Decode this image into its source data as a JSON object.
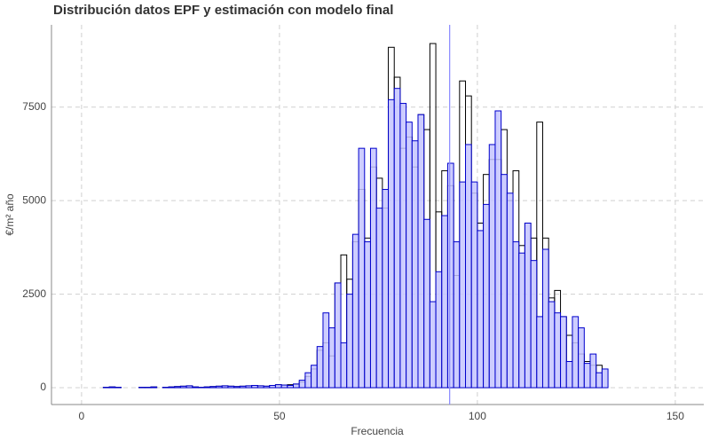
{
  "chart_data": {
    "type": "histogram",
    "title": "Distribución datos EPF y estimación con modelo final",
    "x_label": "Frecuencia",
    "y_label": "€/m² año",
    "bins": [
      1,
      2.5,
      4,
      5.5,
      7,
      8.5,
      10,
      11.5,
      13,
      14.5,
      16,
      17.5,
      19,
      20.5,
      22,
      23.5,
      25,
      26.5,
      28,
      29.5,
      31,
      32.5,
      34,
      35.5,
      37,
      38.5,
      40,
      41.5,
      43,
      44.5,
      46,
      47.5,
      49,
      50.5,
      52,
      53.5,
      55,
      56.5,
      58,
      59.5,
      61,
      62.5,
      64,
      65.5,
      67,
      68.5,
      70,
      71.5,
      73,
      74.5,
      76,
      77.5,
      79,
      80.5,
      82,
      83.5,
      85,
      86.5,
      88,
      89.5,
      91,
      92.5,
      94,
      95.5,
      97,
      98.5,
      100,
      101.5,
      103,
      104.5,
      106,
      107.5,
      109,
      110.5,
      112,
      113.5,
      115,
      116.5,
      118,
      119.5,
      121,
      122.5,
      124,
      125.5,
      127,
      128.5,
      130,
      131.5,
      133,
      134.5,
      136,
      137.5,
      139,
      140.5,
      142,
      143.5,
      145,
      146.5,
      148,
      149.5
    ],
    "series": [
      {
        "color": "#000000",
        "fill": "none",
        "values": [
          0,
          0,
          0,
          10,
          20,
          10,
          0,
          0,
          0,
          10,
          10,
          20,
          0,
          10,
          20,
          30,
          40,
          50,
          20,
          10,
          20,
          30,
          40,
          50,
          40,
          30,
          40,
          50,
          60,
          50,
          40,
          60,
          80,
          70,
          80,
          80,
          150,
          300,
          500,
          1000,
          1200,
          850,
          2800,
          3550,
          2900,
          3900,
          5300,
          4000,
          5900,
          5600,
          4800,
          9100,
          8300,
          6400,
          6700,
          5900,
          7300,
          6900,
          9200,
          4700,
          5800,
          5400,
          3000,
          8200,
          7800,
          5200,
          4400,
          5700,
          6100,
          6100,
          6900,
          5000,
          5800,
          3800,
          4400,
          4000,
          7100,
          4000,
          2400,
          2600,
          1900,
          1400,
          1200,
          900,
          700,
          600,
          600,
          0,
          0,
          0,
          0,
          0,
          0,
          0,
          0,
          0,
          0,
          0,
          0
        ]
      },
      {
        "color": "#0000cc",
        "fill": "#c4c4ff",
        "values": [
          0,
          0,
          0,
          10,
          20,
          10,
          0,
          0,
          0,
          10,
          10,
          20,
          0,
          10,
          20,
          30,
          40,
          50,
          20,
          10,
          20,
          30,
          40,
          50,
          40,
          30,
          40,
          50,
          60,
          50,
          40,
          60,
          80,
          70,
          60,
          100,
          200,
          400,
          600,
          1100,
          2000,
          1600,
          2800,
          1200,
          2500,
          4100,
          6400,
          3900,
          6400,
          4800,
          5300,
          7700,
          8000,
          7600,
          7100,
          6600,
          7300,
          4500,
          2300,
          3100,
          4600,
          6000,
          3900,
          5500,
          6500,
          5500,
          4200,
          4900,
          6500,
          7400,
          5700,
          5200,
          3900,
          3600,
          4400,
          3400,
          1900,
          3700,
          2300,
          2000,
          1900,
          700,
          1900,
          1600,
          650,
          900,
          400,
          500,
          0,
          0,
          0,
          0,
          0,
          0,
          0,
          0,
          0,
          0,
          0
        ]
      }
    ],
    "vline": {
      "x": 93,
      "color": "#8888ff"
    },
    "xlim": [
      -7.6,
      157.2
    ],
    "xticks": [
      0,
      50,
      100,
      150
    ],
    "ylim": [
      -450,
      9700
    ],
    "yticks": [
      0,
      2500,
      5000,
      7500
    ],
    "grid": true
  }
}
